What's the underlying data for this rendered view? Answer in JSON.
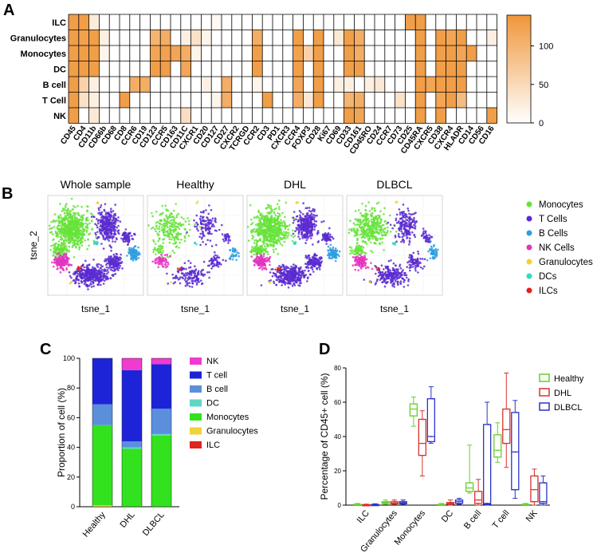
{
  "panel_labels": [
    "A",
    "B",
    "C",
    "D"
  ],
  "colors": {
    "orange": "#f0963a",
    "purple": "#5b2bd0",
    "green": "#66e33a",
    "sky": "#2e9ee0",
    "magenta": "#e335c0",
    "yellow": "#f2d23a",
    "teal": "#36d8c4",
    "red": "#e0241e"
  },
  "chart_data": [
    {
      "type": "heatmap",
      "panel": "A",
      "rows": [
        "ILC",
        "Granulocytes",
        "Monocytes",
        "DC",
        "B cell",
        "T Cell",
        "NK"
      ],
      "columns": [
        "CD45",
        "CD4",
        "CD11b",
        "CD66b",
        "CD68",
        "CD8",
        "CCR6",
        "CD19",
        "CD123",
        "CCR5",
        "CD163",
        "CD11C",
        "CXCR1",
        "CD20",
        "CD127",
        "CD27",
        "CXCR2",
        "TCRGD",
        "CCR2",
        "CD3",
        "PD1",
        "CXCR3",
        "CCR4",
        "FOXP3",
        "CD28",
        "Ki67",
        "CD69",
        "CD33",
        "CD161",
        "CD45RO",
        "CD24",
        "CCR7",
        "CD73",
        "CD25",
        "CD45RA",
        "CXCR5",
        "CD38",
        "CXCR4",
        "HLADR",
        "CD14",
        "CD56",
        "CD16"
      ],
      "values": [
        [
          130,
          130,
          25,
          0,
          0,
          0,
          0,
          0,
          0,
          0,
          0,
          0,
          0,
          0,
          10,
          0,
          0,
          0,
          0,
          0,
          0,
          0,
          0,
          0,
          0,
          0,
          0,
          0,
          0,
          0,
          0,
          0,
          0,
          130,
          130,
          0,
          0,
          0,
          0,
          0,
          0,
          0
        ],
        [
          130,
          125,
          130,
          20,
          0,
          0,
          0,
          0,
          100,
          110,
          0,
          20,
          40,
          15,
          0,
          0,
          0,
          0,
          110,
          0,
          0,
          0,
          130,
          0,
          130,
          0,
          30,
          130,
          110,
          0,
          0,
          0,
          0,
          0,
          130,
          0,
          130,
          120,
          130,
          0,
          0,
          20
        ],
        [
          130,
          130,
          130,
          15,
          0,
          0,
          0,
          0,
          120,
          125,
          120,
          110,
          15,
          0,
          0,
          0,
          0,
          0,
          130,
          0,
          0,
          0,
          125,
          60,
          130,
          0,
          0,
          130,
          110,
          0,
          0,
          0,
          0,
          0,
          130,
          0,
          130,
          130,
          120,
          130,
          0,
          0
        ],
        [
          130,
          130,
          130,
          0,
          0,
          0,
          0,
          0,
          130,
          130,
          0,
          120,
          0,
          0,
          0,
          0,
          0,
          0,
          130,
          0,
          0,
          0,
          130,
          0,
          130,
          0,
          0,
          130,
          130,
          0,
          0,
          0,
          0,
          0,
          130,
          0,
          130,
          130,
          130,
          0,
          0,
          0
        ],
        [
          130,
          60,
          20,
          0,
          0,
          0,
          110,
          110,
          0,
          0,
          0,
          0,
          0,
          20,
          0,
          110,
          0,
          0,
          15,
          0,
          0,
          0,
          120,
          0,
          130,
          0,
          20,
          20,
          0,
          20,
          30,
          0,
          0,
          0,
          130,
          120,
          130,
          130,
          130,
          0,
          0,
          0
        ],
        [
          130,
          40,
          20,
          0,
          0,
          130,
          0,
          0,
          0,
          0,
          0,
          0,
          0,
          0,
          15,
          110,
          0,
          0,
          0,
          130,
          0,
          0,
          110,
          30,
          130,
          0,
          0,
          100,
          110,
          0,
          0,
          0,
          40,
          0,
          130,
          0,
          120,
          130,
          90,
          0,
          0,
          0
        ],
        [
          130,
          0,
          30,
          0,
          0,
          0,
          0,
          0,
          0,
          0,
          0,
          45,
          0,
          0,
          0,
          0,
          0,
          0,
          0,
          0,
          0,
          0,
          0,
          0,
          0,
          0,
          0,
          130,
          120,
          0,
          0,
          0,
          0,
          0,
          130,
          0,
          130,
          0,
          0,
          0,
          0,
          130
        ]
      ],
      "colorbar": {
        "min": 0,
        "max": 140,
        "ticks": [
          0,
          50,
          100
        ]
      }
    },
    {
      "type": "scatter",
      "panel": "B",
      "panels": [
        "Whole sample",
        "Healthy",
        "DHL",
        "DLBCL"
      ],
      "xlabel": "tsne_1",
      "ylabel": "tsne_2",
      "legend": [
        {
          "name": "Monocytes",
          "color": "#66e33a"
        },
        {
          "name": "T Cells",
          "color": "#5b2bd0"
        },
        {
          "name": "B Cells",
          "color": "#2e9ee0"
        },
        {
          "name": "NK Cells",
          "color": "#e335c0"
        },
        {
          "name": "Granulocytes",
          "color": "#f2d23a"
        },
        {
          "name": "DCs",
          "color": "#36d8c4"
        },
        {
          "name": "ILCs",
          "color": "#e0241e"
        }
      ],
      "density": [
        1.0,
        0.35,
        0.9,
        0.55
      ]
    },
    {
      "type": "bar",
      "panel": "C",
      "stacked": true,
      "categories": [
        "Healthy",
        "DHL",
        "DLBCL"
      ],
      "ylabel": "Proportion of cell (%)",
      "ylim": [
        0,
        100
      ],
      "yticks": [
        0,
        20,
        40,
        60,
        80,
        100
      ],
      "series": [
        {
          "name": "ILC",
          "color": "#e0241e",
          "values": [
            0,
            0,
            0
          ]
        },
        {
          "name": "Granulocytes",
          "color": "#f2d23a",
          "values": [
            1,
            0,
            0
          ]
        },
        {
          "name": "Monocytes",
          "color": "#33e21e",
          "values": [
            54,
            39,
            48
          ]
        },
        {
          "name": "DC",
          "color": "#5fd6c4",
          "values": [
            0,
            1,
            1
          ]
        },
        {
          "name": "B cell",
          "color": "#5b8fdc",
          "values": [
            14,
            4,
            17
          ]
        },
        {
          "name": "T cell",
          "color": "#1d24d8",
          "values": [
            31,
            48,
            30
          ]
        },
        {
          "name": "NK",
          "color": "#f03ad0",
          "values": [
            0,
            8,
            4
          ]
        }
      ],
      "legend_order": [
        "NK",
        "T cell",
        "B cell",
        "DC",
        "Monocytes",
        "Granulocytes",
        "ILC"
      ]
    },
    {
      "type": "box",
      "panel": "D",
      "categories": [
        "ILC",
        "Granulocytes",
        "Monocytes",
        "DC",
        "B cell",
        "T cell",
        "NK"
      ],
      "ylabel": "Percentage of CD45+ cell (%)",
      "ylim": [
        0,
        80
      ],
      "yticks": [
        0,
        20,
        40,
        60,
        80
      ],
      "groups": [
        {
          "name": "Healthy",
          "color": "#66d12a",
          "boxes": [
            [
              0,
              0,
              0.2,
              0.5,
              1
            ],
            [
              0.5,
              1,
              1.5,
              2,
              3
            ],
            [
              46,
              52,
              56,
              59,
              63
            ],
            [
              0,
              0,
              0.3,
              0.5,
              1
            ],
            [
              7,
              8,
              10,
              13,
              35
            ],
            [
              25,
              28,
              32,
              41,
              48
            ],
            [
              0,
              0,
              0.2,
              0.5,
              1
            ]
          ]
        },
        {
          "name": "DHL",
          "color": "#d8322c",
          "boxes": [
            [
              0,
              0,
              0.1,
              0.3,
              0.6
            ],
            [
              0.5,
              0.8,
              1.2,
              2,
              3
            ],
            [
              17,
              29,
              36,
              50,
              55
            ],
            [
              0,
              0.5,
              1,
              1.5,
              3
            ],
            [
              0,
              1,
              3,
              8,
              15
            ],
            [
              22,
              36,
              44,
              56,
              77
            ],
            [
              0,
              2,
              9,
              17,
              21
            ]
          ]
        },
        {
          "name": "DLBCL",
          "color": "#2a33c8",
          "boxes": [
            [
              0,
              0,
              0.1,
              0.4,
              0.8
            ],
            [
              0.5,
              0.8,
              1.3,
              2,
              3
            ],
            [
              36,
              37,
              40,
              62,
              69
            ],
            [
              0.5,
              1,
              2,
              3,
              4
            ],
            [
              0,
              0.5,
              1,
              47,
              60
            ],
            [
              4,
              9,
              31,
              54,
              61
            ],
            [
              0,
              1,
              2,
              13,
              17
            ]
          ]
        }
      ]
    }
  ]
}
